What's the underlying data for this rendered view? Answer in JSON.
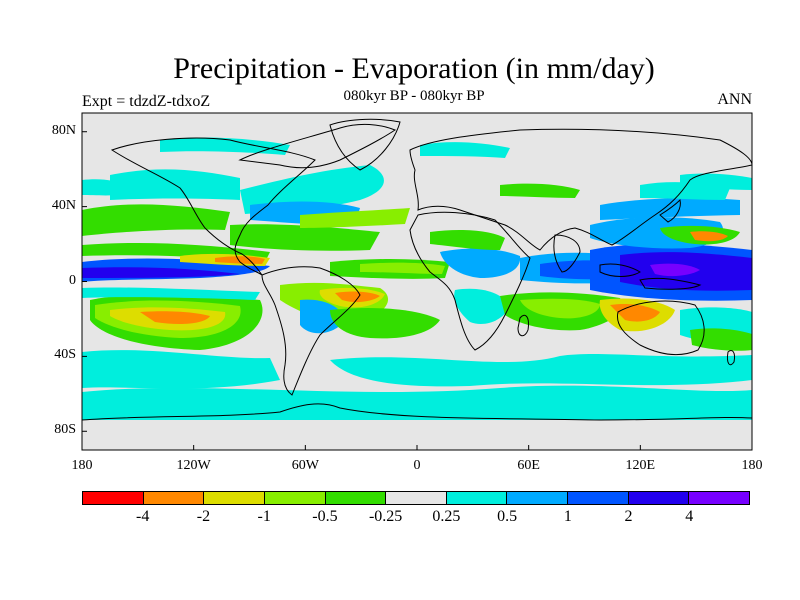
{
  "title": "Precipitation - Evaporation (in mm/day)",
  "subtitle": "080kyr BP - 080kyr BP",
  "left_label": "Expt = tdzdZ-tdxoZ",
  "right_label": "ANN",
  "map": {
    "lon_ticks": [
      "180",
      "120W",
      "60W",
      "0",
      "60E",
      "120E",
      "180"
    ],
    "lat_ticks": [
      "80N",
      "40N",
      "0",
      "40S",
      "80S"
    ],
    "land_color": "#e6e6e6"
  },
  "colorbar": {
    "colors": [
      "#ff0000",
      "#ff8800",
      "#dddd00",
      "#88ee00",
      "#33dd00",
      "#e6e6e6",
      "#00eedd",
      "#00aaff",
      "#0055ff",
      "#2200ee",
      "#7700ff"
    ],
    "labels": [
      "-4",
      "-2",
      "-1",
      "-0.5",
      "-0.25",
      "0.25",
      "0.5",
      "1",
      "2",
      "4"
    ]
  }
}
